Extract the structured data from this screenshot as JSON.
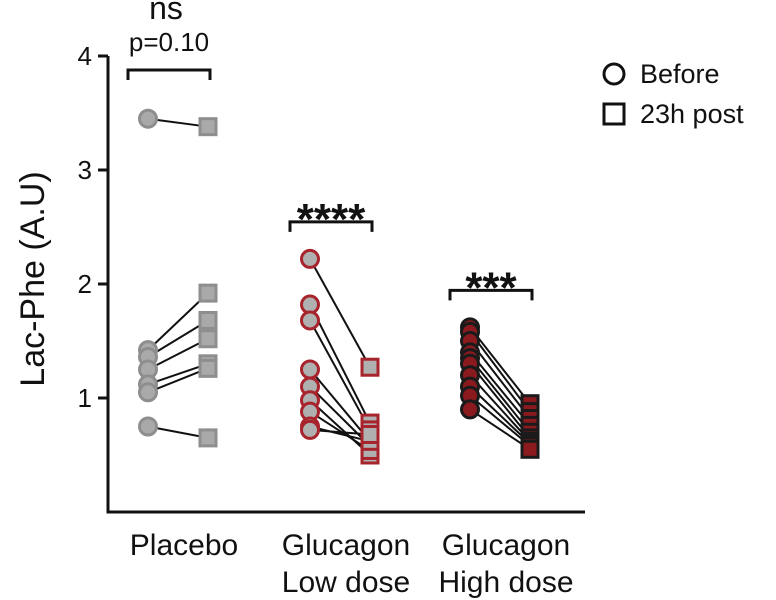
{
  "chart_data": {
    "type": "scatter",
    "subtype": "paired before-after dot plot",
    "ylabel": "Lac-Phe (A.U)",
    "ylim": [
      0,
      4
    ],
    "yticks": [
      "1",
      "2",
      "3",
      "4"
    ],
    "grid": false,
    "legend_placement": "top-right",
    "legend": [
      {
        "marker": "circle",
        "label": "Before"
      },
      {
        "marker": "square",
        "label": "23h post"
      }
    ],
    "groups": [
      {
        "label_lines": [
          "Placebo"
        ],
        "fill": "#a9a9a9",
        "stroke": "#8e8e8e",
        "pairs": [
          [
            3.45,
            3.38
          ],
          [
            1.42,
            1.92
          ],
          [
            1.36,
            1.68
          ],
          [
            1.25,
            1.52
          ],
          [
            1.12,
            1.3
          ],
          [
            1.05,
            1.26
          ],
          [
            0.75,
            0.65
          ]
        ],
        "significance": "ns",
        "p_text": "p=0.10"
      },
      {
        "label_lines": [
          "Glucagon",
          "Low dose"
        ],
        "fill": "#b0b0b0",
        "stroke": "#a8242d",
        "pairs": [
          [
            2.22,
            1.27
          ],
          [
            1.82,
            0.78
          ],
          [
            1.68,
            0.72
          ],
          [
            1.25,
            0.62
          ],
          [
            1.1,
            0.58
          ],
          [
            0.98,
            0.5
          ],
          [
            0.88,
            0.54
          ],
          [
            0.75,
            0.62
          ],
          [
            0.72,
            0.68
          ]
        ],
        "significance": "****",
        "p_text": ""
      },
      {
        "label_lines": [
          "Glucagon",
          "High dose"
        ],
        "fill": "#8b1a1f",
        "stroke": "#1a1a1a",
        "pairs": [
          [
            1.62,
            0.95
          ],
          [
            1.58,
            0.88
          ],
          [
            1.5,
            0.82
          ],
          [
            1.4,
            0.76
          ],
          [
            1.35,
            0.7
          ],
          [
            1.3,
            0.65
          ],
          [
            1.2,
            0.62
          ],
          [
            1.1,
            0.6
          ],
          [
            1.02,
            0.58
          ],
          [
            0.9,
            0.55
          ]
        ],
        "significance": "***",
        "p_text": ""
      }
    ]
  }
}
